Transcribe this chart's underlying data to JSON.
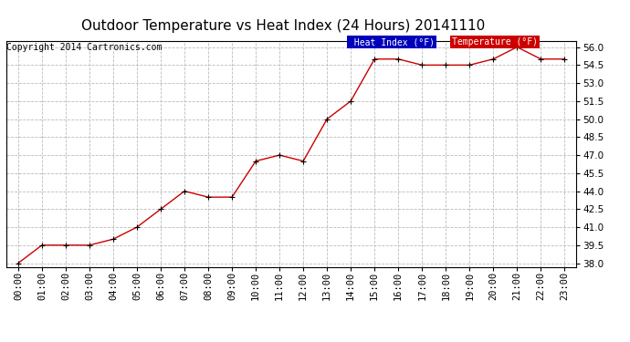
{
  "title": "Outdoor Temperature vs Heat Index (24 Hours) 20141110",
  "copyright": "Copyright 2014 Cartronics.com",
  "x_labels": [
    "00:00",
    "01:00",
    "02:00",
    "03:00",
    "04:00",
    "05:00",
    "06:00",
    "07:00",
    "08:00",
    "09:00",
    "10:00",
    "11:00",
    "12:00",
    "13:00",
    "14:00",
    "15:00",
    "16:00",
    "17:00",
    "18:00",
    "19:00",
    "20:00",
    "21:00",
    "22:00",
    "23:00"
  ],
  "temperature": [
    38.0,
    39.5,
    39.5,
    39.5,
    40.0,
    41.0,
    42.5,
    44.0,
    43.5,
    43.5,
    46.5,
    47.0,
    46.5,
    50.0,
    51.5,
    55.0,
    55.0,
    54.5,
    54.5,
    54.5,
    55.0,
    56.0,
    55.0,
    55.0
  ],
  "heat_index": [
    38.0,
    39.5,
    39.5,
    39.5,
    40.0,
    41.0,
    42.5,
    44.0,
    43.5,
    43.5,
    46.5,
    47.0,
    46.5,
    50.0,
    51.5,
    55.0,
    55.0,
    54.5,
    54.5,
    54.5,
    55.0,
    56.0,
    55.0,
    55.0
  ],
  "line_color": "#cc0000",
  "marker_color": "#000000",
  "bg_color": "#ffffff",
  "grid_color": "#bbbbbb",
  "ylim_min": 38.0,
  "ylim_max": 56.0,
  "ytick_step": 1.5,
  "legend_heat_bg": "#0000bb",
  "legend_temp_bg": "#cc0000",
  "legend_text_color": "#ffffff",
  "title_fontsize": 11,
  "copyright_fontsize": 7,
  "tick_fontsize": 7.5
}
